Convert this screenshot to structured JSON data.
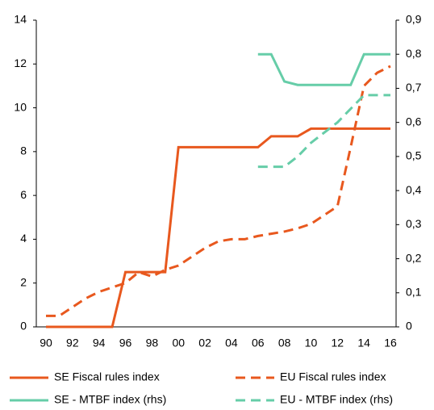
{
  "chart_data": {
    "type": "line",
    "categories": [
      "90",
      null,
      "92",
      null,
      "94",
      null,
      "96",
      null,
      "98",
      null,
      "00",
      null,
      "02",
      null,
      "04",
      null,
      "06",
      null,
      "08",
      null,
      "10",
      null,
      "12",
      null,
      "14",
      null,
      "16"
    ],
    "ylim": [
      0,
      14
    ],
    "yticks": [
      0,
      2,
      4,
      6,
      8,
      10,
      12,
      14
    ],
    "y2lim": [
      0,
      0.9
    ],
    "y2ticks": [
      0,
      {
        "value": 0.1,
        "label": "0,1"
      },
      {
        "value": 0.2,
        "label": "0,2"
      },
      {
        "value": 0.3,
        "label": "0,3"
      },
      {
        "value": 0.4,
        "label": "0,4"
      },
      {
        "value": 0.5,
        "label": "0,5"
      },
      {
        "value": 0.6,
        "label": "0,6"
      },
      {
        "value": 0.7,
        "label": "0,7"
      },
      {
        "value": 0.8,
        "label": "0,8"
      },
      {
        "value": 0.9,
        "label": "0,9"
      }
    ],
    "series": [
      {
        "name": "SE Fiscal rules index",
        "color": "#e8581e",
        "dashed": false,
        "values": [
          0,
          0,
          0,
          0,
          0,
          0,
          2.5,
          2.5,
          2.5,
          2.5,
          8.2,
          8.2,
          8.2,
          8.2,
          8.2,
          8.2,
          8.2,
          8.7,
          8.7,
          8.7,
          9.05,
          9.05,
          9.05,
          9.05,
          9.05,
          9.05,
          9.05
        ]
      },
      {
        "name": "EU Fiscal rules index",
        "color": "#e8581e",
        "dashed": true,
        "values": [
          0.5,
          0.5,
          0.9,
          1.3,
          1.6,
          1.8,
          2.0,
          2.5,
          2.3,
          2.6,
          2.8,
          3.2,
          3.6,
          3.9,
          4.0,
          4.0,
          4.15,
          4.25,
          4.35,
          4.5,
          4.7,
          5.1,
          5.5,
          8.2,
          11.0,
          11.6,
          11.9
        ]
      },
      {
        "name": "SE - MTBF index (rhs)",
        "color": "#66cda8",
        "dashed": false,
        "axis": "y2",
        "values": [
          null,
          null,
          null,
          null,
          null,
          null,
          null,
          null,
          null,
          null,
          null,
          null,
          null,
          null,
          null,
          null,
          0.8,
          0.8,
          0.72,
          0.71,
          0.71,
          0.71,
          0.71,
          0.71,
          0.8,
          0.8,
          0.8
        ]
      },
      {
        "name": "EU - MTBF index (rhs)",
        "color": "#66cda8",
        "dashed": true,
        "axis": "y2",
        "values": [
          null,
          null,
          null,
          null,
          null,
          null,
          null,
          null,
          null,
          null,
          null,
          null,
          null,
          null,
          null,
          null,
          0.47,
          0.47,
          0.47,
          0.5,
          0.54,
          0.57,
          0.6,
          0.64,
          0.68,
          0.68,
          0.68
        ]
      }
    ],
    "legend": "bottom"
  }
}
